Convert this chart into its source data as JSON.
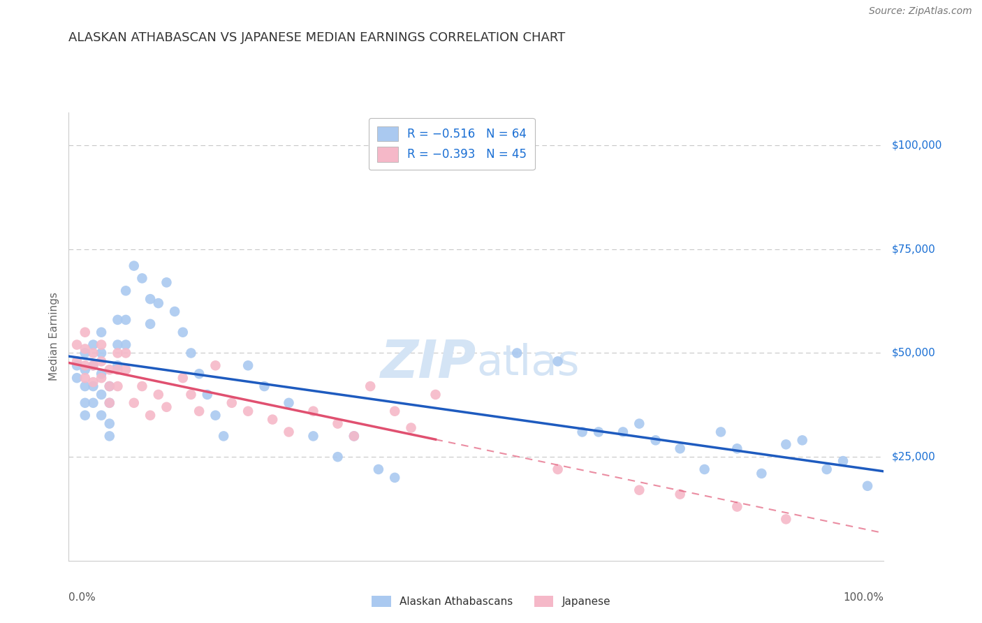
{
  "title": "ALASKAN ATHABASCAN VS JAPANESE MEDIAN EARNINGS CORRELATION CHART",
  "source": "Source: ZipAtlas.com",
  "ylabel": "Median Earnings",
  "background_color": "#ffffff",
  "grid_color": "#c8c8c8",
  "blue_color": "#aac9f0",
  "pink_color": "#f5b8c8",
  "blue_line_color": "#1e5bbf",
  "pink_line_color": "#e05070",
  "title_color": "#333333",
  "source_color": "#777777",
  "legend_color": "#1a6fd4",
  "watermark_color": "#d4e4f5",
  "legend_bottom1": "Alaskan Athabascans",
  "legend_bottom2": "Japanese",
  "blue_x": [
    0.01,
    0.01,
    0.02,
    0.02,
    0.02,
    0.02,
    0.02,
    0.03,
    0.03,
    0.03,
    0.03,
    0.04,
    0.04,
    0.04,
    0.04,
    0.04,
    0.05,
    0.05,
    0.05,
    0.05,
    0.06,
    0.06,
    0.06,
    0.07,
    0.07,
    0.07,
    0.08,
    0.09,
    0.1,
    0.1,
    0.11,
    0.12,
    0.13,
    0.14,
    0.15,
    0.16,
    0.17,
    0.18,
    0.19,
    0.22,
    0.24,
    0.27,
    0.3,
    0.33,
    0.35,
    0.38,
    0.4,
    0.55,
    0.6,
    0.63,
    0.65,
    0.68,
    0.7,
    0.72,
    0.75,
    0.78,
    0.8,
    0.82,
    0.85,
    0.88,
    0.9,
    0.93,
    0.95,
    0.98
  ],
  "blue_y": [
    47000,
    44000,
    50000,
    46000,
    42000,
    38000,
    35000,
    52000,
    47000,
    42000,
    38000,
    55000,
    50000,
    45000,
    40000,
    35000,
    42000,
    38000,
    33000,
    30000,
    58000,
    52000,
    47000,
    65000,
    58000,
    52000,
    71000,
    68000,
    63000,
    57000,
    62000,
    67000,
    60000,
    55000,
    50000,
    45000,
    40000,
    35000,
    30000,
    47000,
    42000,
    38000,
    30000,
    25000,
    30000,
    22000,
    20000,
    50000,
    48000,
    31000,
    31000,
    31000,
    33000,
    29000,
    27000,
    22000,
    31000,
    27000,
    21000,
    28000,
    29000,
    22000,
    24000,
    18000
  ],
  "pink_x": [
    0.01,
    0.01,
    0.02,
    0.02,
    0.02,
    0.02,
    0.03,
    0.03,
    0.03,
    0.04,
    0.04,
    0.04,
    0.05,
    0.05,
    0.05,
    0.06,
    0.06,
    0.06,
    0.07,
    0.07,
    0.08,
    0.09,
    0.1,
    0.11,
    0.12,
    0.14,
    0.15,
    0.16,
    0.18,
    0.2,
    0.22,
    0.25,
    0.27,
    0.3,
    0.33,
    0.35,
    0.37,
    0.4,
    0.42,
    0.45,
    0.6,
    0.7,
    0.75,
    0.82,
    0.88
  ],
  "pink_y": [
    52000,
    48000,
    55000,
    51000,
    47000,
    44000,
    50000,
    47000,
    43000,
    52000,
    48000,
    44000,
    46000,
    42000,
    38000,
    50000,
    46000,
    42000,
    50000,
    46000,
    38000,
    42000,
    35000,
    40000,
    37000,
    44000,
    40000,
    36000,
    47000,
    38000,
    36000,
    34000,
    31000,
    36000,
    33000,
    30000,
    42000,
    36000,
    32000,
    40000,
    22000,
    17000,
    16000,
    13000,
    10000
  ]
}
